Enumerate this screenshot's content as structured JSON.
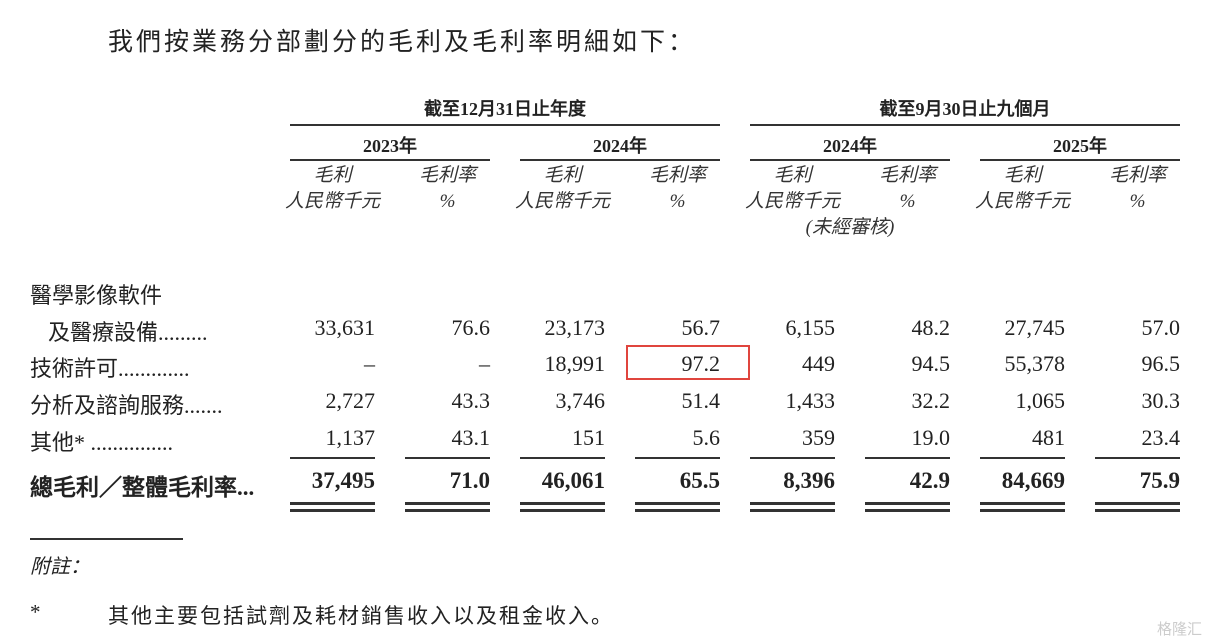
{
  "intro": "我們按業務分部劃分的毛利及毛利率明細如下：",
  "groups": [
    {
      "label": "截至12月31日止年度",
      "years": [
        "2023年",
        "2024年"
      ]
    },
    {
      "label": "截至9月30日止九個月",
      "years": [
        "2024年",
        "2025年"
      ]
    }
  ],
  "col_headers": {
    "gp": "毛利",
    "gp_unit": "人民幣千元",
    "margin": "毛利率",
    "margin_unit": "%",
    "unaudited": "(未經審核)"
  },
  "rows": [
    {
      "label1": "醫學影像軟件",
      "label": "及醫療設備.........",
      "values": [
        "33,631",
        "76.6",
        "23,173",
        "56.7",
        "6,155",
        "48.2",
        "27,745",
        "57.0"
      ]
    },
    {
      "label": "技術許可.............",
      "values": [
        "–",
        "–",
        "18,991",
        "97.2",
        "449",
        "94.5",
        "55,378",
        "96.5"
      ]
    },
    {
      "label": "分析及諮詢服務.......",
      "values": [
        "2,727",
        "43.3",
        "3,746",
        "51.4",
        "1,433",
        "32.2",
        "1,065",
        "30.3"
      ]
    },
    {
      "label": "其他* ...............",
      "values": [
        "1,137",
        "43.1",
        "151",
        "5.6",
        "359",
        "19.0",
        "481",
        "23.4"
      ]
    }
  ],
  "total": {
    "label": "總毛利／整體毛利率...",
    "values": [
      "37,495",
      "71.0",
      "46,061",
      "65.5",
      "8,396",
      "42.9",
      "84,669",
      "75.9"
    ]
  },
  "note_title": "附註：",
  "note": {
    "mark": "*",
    "text": "其他主要包括試劑及耗材銷售收入以及租金收入。"
  },
  "watermark": "格隆汇",
  "highlight_color": "#e0453e"
}
